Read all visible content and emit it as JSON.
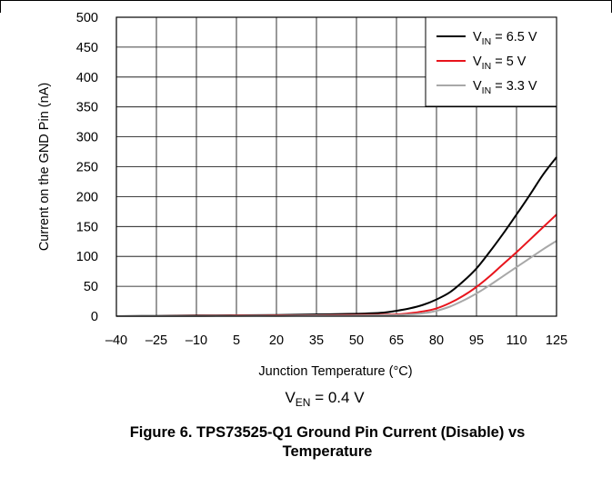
{
  "chart_data": {
    "type": "line",
    "xlabel": "Junction Temperature (°C)",
    "ylabel": "Current on the GND Pin (nA)",
    "xlim": [
      -40,
      125
    ],
    "ylim": [
      0,
      500
    ],
    "x_ticks": [
      -40,
      -25,
      -10,
      5,
      20,
      35,
      50,
      65,
      80,
      95,
      110,
      125
    ],
    "y_ticks": [
      0,
      50,
      100,
      150,
      200,
      250,
      300,
      350,
      400,
      450,
      500
    ],
    "x_tick_labels": [
      "–40",
      "–25",
      "–10",
      "5",
      "20",
      "35",
      "50",
      "65",
      "80",
      "95",
      "110",
      "125"
    ],
    "grid": true,
    "legend_position": "top-right",
    "annotation": {
      "main": "V",
      "sub": "EN",
      "rest": " = 0.4 V"
    },
    "series": [
      {
        "label_main": "V",
        "label_sub": "IN",
        "label_rest": " = 6.5 V",
        "color": "#000000",
        "points": [
          [
            -40,
            0
          ],
          [
            -25,
            0.5
          ],
          [
            -10,
            1
          ],
          [
            5,
            1.5
          ],
          [
            20,
            2
          ],
          [
            35,
            3
          ],
          [
            50,
            4
          ],
          [
            60,
            6
          ],
          [
            65,
            9
          ],
          [
            70,
            13
          ],
          [
            75,
            19
          ],
          [
            80,
            28
          ],
          [
            85,
            40
          ],
          [
            90,
            58
          ],
          [
            95,
            80
          ],
          [
            100,
            108
          ],
          [
            105,
            138
          ],
          [
            110,
            170
          ],
          [
            115,
            203
          ],
          [
            120,
            237
          ],
          [
            125,
            266
          ]
        ]
      },
      {
        "label_main": "V",
        "label_sub": "IN",
        "label_rest": " = 5 V",
        "color": "#e8141c",
        "points": [
          [
            -40,
            0
          ],
          [
            -25,
            0
          ],
          [
            -10,
            0.5
          ],
          [
            5,
            1
          ],
          [
            20,
            1
          ],
          [
            35,
            1.5
          ],
          [
            50,
            2
          ],
          [
            65,
            3
          ],
          [
            70,
            5
          ],
          [
            75,
            8
          ],
          [
            80,
            13
          ],
          [
            85,
            22
          ],
          [
            90,
            34
          ],
          [
            95,
            49
          ],
          [
            100,
            67
          ],
          [
            105,
            87
          ],
          [
            110,
            107
          ],
          [
            115,
            128
          ],
          [
            120,
            149
          ],
          [
            125,
            170
          ]
        ]
      },
      {
        "label_main": "V",
        "label_sub": "IN",
        "label_rest": " = 3.3 V",
        "color": "#a8a8a8",
        "points": [
          [
            -40,
            0
          ],
          [
            -25,
            0
          ],
          [
            -10,
            0
          ],
          [
            5,
            0.5
          ],
          [
            20,
            0.5
          ],
          [
            35,
            1
          ],
          [
            50,
            1
          ],
          [
            65,
            2
          ],
          [
            70,
            3
          ],
          [
            75,
            5
          ],
          [
            80,
            9
          ],
          [
            85,
            16
          ],
          [
            90,
            26
          ],
          [
            95,
            38
          ],
          [
            100,
            52
          ],
          [
            105,
            67
          ],
          [
            110,
            82
          ],
          [
            115,
            97
          ],
          [
            120,
            112
          ],
          [
            125,
            126
          ]
        ]
      }
    ]
  },
  "caption": {
    "line1": "Figure 6. TPS73525-Q1 Ground Pin Current (Disable) vs",
    "line2": "Temperature"
  }
}
